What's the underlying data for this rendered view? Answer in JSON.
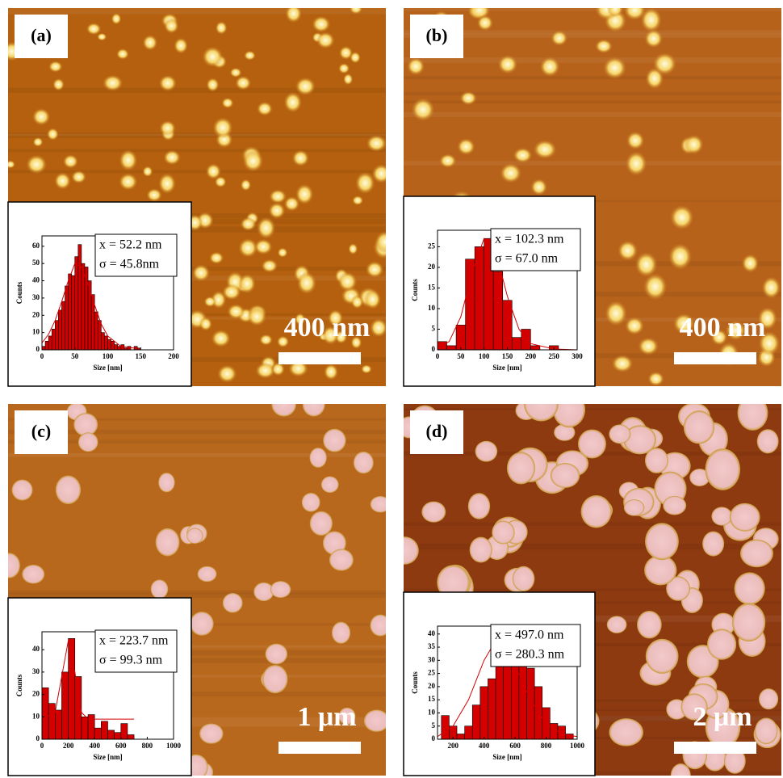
{
  "panels": [
    {
      "label": "(a)",
      "scale_text": "400 nm"
    },
    {
      "label": "(b)",
      "scale_text": "400 nm"
    },
    {
      "label": "(c)",
      "scale_text": "1 μm"
    },
    {
      "label": "(d)",
      "scale_text": "2 μm"
    }
  ],
  "chart_data": [
    {
      "type": "histogram",
      "color": "#d40000",
      "x_label": "Size [nm]",
      "y_label": "Counts",
      "annotations": [
        "x = 52.2 nm",
        "σ = 45.8nm"
      ],
      "bins": [
        0,
        5,
        10,
        15,
        20,
        25,
        30,
        35,
        40,
        45,
        50,
        55,
        60,
        65,
        70,
        75,
        80,
        85,
        90,
        95,
        100,
        105,
        110,
        115,
        120,
        125,
        130,
        135,
        140,
        145,
        150
      ],
      "values": [
        2,
        5,
        8,
        12,
        17,
        23,
        28,
        37,
        44,
        43,
        54,
        61,
        50,
        48,
        40,
        32,
        22,
        17,
        10,
        8,
        6,
        5,
        3,
        2,
        3,
        1,
        2,
        0,
        2,
        1
      ],
      "fit": {
        "x": [
          0,
          10,
          20,
          30,
          40,
          50,
          60,
          70,
          80,
          90,
          100,
          120,
          140
        ],
        "values": [
          4,
          9,
          17,
          28,
          40,
          50,
          48,
          38,
          26,
          15,
          8,
          2,
          1
        ]
      },
      "xlim": [
        0,
        200
      ],
      "xticks": [
        0,
        50,
        100,
        150,
        200
      ],
      "ylim": [
        0,
        66
      ],
      "yticks": [
        0,
        10,
        20,
        30,
        40,
        50,
        60
      ]
    },
    {
      "type": "histogram",
      "color": "#d40000",
      "x_label": "Size [nm]",
      "y_label": "Counts",
      "annotations": [
        "x = 102.3 nm",
        "σ = 67.0 nm"
      ],
      "bins": [
        0,
        20,
        40,
        60,
        80,
        100,
        120,
        140,
        160,
        180,
        200,
        220,
        240,
        260
      ],
      "values": [
        2,
        1,
        6,
        22,
        25,
        27,
        19,
        12,
        3,
        5,
        1,
        0,
        1
      ],
      "fit": {
        "x": [
          0,
          25,
          50,
          75,
          100,
          125,
          150,
          175,
          200,
          250,
          300
        ],
        "values": [
          0.5,
          2,
          8,
          19,
          27,
          24,
          13,
          5,
          1.5,
          0.2,
          0
        ]
      },
      "xlim": [
        0,
        300
      ],
      "xticks": [
        0,
        50,
        100,
        150,
        200,
        250,
        300
      ],
      "ylim": [
        0,
        29
      ],
      "yticks": [
        0,
        5,
        10,
        15,
        20,
        25
      ]
    },
    {
      "type": "histogram",
      "color": "#d40000",
      "x_label": "Size [nm]",
      "y_label": "Counts",
      "annotations": [
        "x = 223.7 nm",
        "σ = 99.3 nm"
      ],
      "bins": [
        0,
        50,
        100,
        150,
        200,
        250,
        300,
        350,
        400,
        450,
        500,
        550,
        600,
        650,
        700
      ],
      "values": [
        23,
        16,
        13,
        30,
        45,
        28,
        10,
        11,
        5,
        8,
        4,
        3,
        7,
        2
      ],
      "fit": {
        "x": [
          0,
          100,
          150,
          200,
          250,
          300,
          350,
          400,
          500,
          600,
          700
        ],
        "values": [
          9,
          12,
          28,
          44,
          30,
          12,
          9,
          9,
          9,
          9,
          9
        ]
      },
      "xlim": [
        0,
        1000
      ],
      "xticks": [
        0,
        200,
        400,
        600,
        800,
        1000
      ],
      "ylim": [
        0,
        48
      ],
      "yticks": [
        0,
        10,
        20,
        30,
        40
      ]
    },
    {
      "type": "histogram",
      "color": "#d40000",
      "x_label": "Size [nm]",
      "y_label": "Counts",
      "annotations": [
        "x = 497.0 nm",
        "σ = 280.3 nm"
      ],
      "bins": [
        125,
        175,
        225,
        275,
        325,
        375,
        425,
        475,
        525,
        575,
        625,
        675,
        725,
        775,
        825,
        875,
        925,
        975
      ],
      "values": [
        9,
        5,
        2,
        5,
        13,
        20,
        23,
        41,
        36,
        34,
        38,
        27,
        20,
        12,
        6,
        5,
        2
      ],
      "fit": {
        "x": [
          100,
          200,
          300,
          400,
          450,
          500,
          600,
          700,
          800,
          900,
          1000
        ],
        "values": [
          1,
          5,
          15,
          30,
          35,
          36,
          28,
          15,
          6,
          2,
          1
        ]
      },
      "xlim": [
        100,
        1000
      ],
      "xticks": [
        200,
        400,
        600,
        800,
        1000
      ],
      "ylim": [
        0,
        43
      ],
      "yticks": [
        0,
        5,
        10,
        15,
        20,
        25,
        30,
        35,
        40
      ]
    }
  ]
}
